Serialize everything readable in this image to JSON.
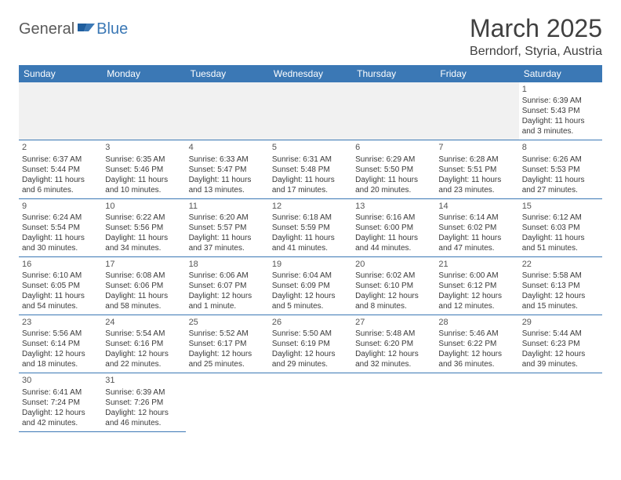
{
  "logo": {
    "part1": "General",
    "part2": "Blue"
  },
  "title": "March 2025",
  "location": "Berndorf, Styria, Austria",
  "colors": {
    "header_bg": "#3b78b5",
    "header_fg": "#ffffff",
    "rule": "#3b78b5",
    "empty_bg": "#f1f1f1",
    "text": "#3a3a3a",
    "title_color": "#404040"
  },
  "daysOfWeek": [
    "Sunday",
    "Monday",
    "Tuesday",
    "Wednesday",
    "Thursday",
    "Friday",
    "Saturday"
  ],
  "weeks": [
    [
      null,
      null,
      null,
      null,
      null,
      null,
      {
        "n": "1",
        "sr": "Sunrise: 6:39 AM",
        "ss": "Sunset: 5:43 PM",
        "dl1": "Daylight: 11 hours",
        "dl2": "and 3 minutes."
      }
    ],
    [
      {
        "n": "2",
        "sr": "Sunrise: 6:37 AM",
        "ss": "Sunset: 5:44 PM",
        "dl1": "Daylight: 11 hours",
        "dl2": "and 6 minutes."
      },
      {
        "n": "3",
        "sr": "Sunrise: 6:35 AM",
        "ss": "Sunset: 5:46 PM",
        "dl1": "Daylight: 11 hours",
        "dl2": "and 10 minutes."
      },
      {
        "n": "4",
        "sr": "Sunrise: 6:33 AM",
        "ss": "Sunset: 5:47 PM",
        "dl1": "Daylight: 11 hours",
        "dl2": "and 13 minutes."
      },
      {
        "n": "5",
        "sr": "Sunrise: 6:31 AM",
        "ss": "Sunset: 5:48 PM",
        "dl1": "Daylight: 11 hours",
        "dl2": "and 17 minutes."
      },
      {
        "n": "6",
        "sr": "Sunrise: 6:29 AM",
        "ss": "Sunset: 5:50 PM",
        "dl1": "Daylight: 11 hours",
        "dl2": "and 20 minutes."
      },
      {
        "n": "7",
        "sr": "Sunrise: 6:28 AM",
        "ss": "Sunset: 5:51 PM",
        "dl1": "Daylight: 11 hours",
        "dl2": "and 23 minutes."
      },
      {
        "n": "8",
        "sr": "Sunrise: 6:26 AM",
        "ss": "Sunset: 5:53 PM",
        "dl1": "Daylight: 11 hours",
        "dl2": "and 27 minutes."
      }
    ],
    [
      {
        "n": "9",
        "sr": "Sunrise: 6:24 AM",
        "ss": "Sunset: 5:54 PM",
        "dl1": "Daylight: 11 hours",
        "dl2": "and 30 minutes."
      },
      {
        "n": "10",
        "sr": "Sunrise: 6:22 AM",
        "ss": "Sunset: 5:56 PM",
        "dl1": "Daylight: 11 hours",
        "dl2": "and 34 minutes."
      },
      {
        "n": "11",
        "sr": "Sunrise: 6:20 AM",
        "ss": "Sunset: 5:57 PM",
        "dl1": "Daylight: 11 hours",
        "dl2": "and 37 minutes."
      },
      {
        "n": "12",
        "sr": "Sunrise: 6:18 AM",
        "ss": "Sunset: 5:59 PM",
        "dl1": "Daylight: 11 hours",
        "dl2": "and 41 minutes."
      },
      {
        "n": "13",
        "sr": "Sunrise: 6:16 AM",
        "ss": "Sunset: 6:00 PM",
        "dl1": "Daylight: 11 hours",
        "dl2": "and 44 minutes."
      },
      {
        "n": "14",
        "sr": "Sunrise: 6:14 AM",
        "ss": "Sunset: 6:02 PM",
        "dl1": "Daylight: 11 hours",
        "dl2": "and 47 minutes."
      },
      {
        "n": "15",
        "sr": "Sunrise: 6:12 AM",
        "ss": "Sunset: 6:03 PM",
        "dl1": "Daylight: 11 hours",
        "dl2": "and 51 minutes."
      }
    ],
    [
      {
        "n": "16",
        "sr": "Sunrise: 6:10 AM",
        "ss": "Sunset: 6:05 PM",
        "dl1": "Daylight: 11 hours",
        "dl2": "and 54 minutes."
      },
      {
        "n": "17",
        "sr": "Sunrise: 6:08 AM",
        "ss": "Sunset: 6:06 PM",
        "dl1": "Daylight: 11 hours",
        "dl2": "and 58 minutes."
      },
      {
        "n": "18",
        "sr": "Sunrise: 6:06 AM",
        "ss": "Sunset: 6:07 PM",
        "dl1": "Daylight: 12 hours",
        "dl2": "and 1 minute."
      },
      {
        "n": "19",
        "sr": "Sunrise: 6:04 AM",
        "ss": "Sunset: 6:09 PM",
        "dl1": "Daylight: 12 hours",
        "dl2": "and 5 minutes."
      },
      {
        "n": "20",
        "sr": "Sunrise: 6:02 AM",
        "ss": "Sunset: 6:10 PM",
        "dl1": "Daylight: 12 hours",
        "dl2": "and 8 minutes."
      },
      {
        "n": "21",
        "sr": "Sunrise: 6:00 AM",
        "ss": "Sunset: 6:12 PM",
        "dl1": "Daylight: 12 hours",
        "dl2": "and 12 minutes."
      },
      {
        "n": "22",
        "sr": "Sunrise: 5:58 AM",
        "ss": "Sunset: 6:13 PM",
        "dl1": "Daylight: 12 hours",
        "dl2": "and 15 minutes."
      }
    ],
    [
      {
        "n": "23",
        "sr": "Sunrise: 5:56 AM",
        "ss": "Sunset: 6:14 PM",
        "dl1": "Daylight: 12 hours",
        "dl2": "and 18 minutes."
      },
      {
        "n": "24",
        "sr": "Sunrise: 5:54 AM",
        "ss": "Sunset: 6:16 PM",
        "dl1": "Daylight: 12 hours",
        "dl2": "and 22 minutes."
      },
      {
        "n": "25",
        "sr": "Sunrise: 5:52 AM",
        "ss": "Sunset: 6:17 PM",
        "dl1": "Daylight: 12 hours",
        "dl2": "and 25 minutes."
      },
      {
        "n": "26",
        "sr": "Sunrise: 5:50 AM",
        "ss": "Sunset: 6:19 PM",
        "dl1": "Daylight: 12 hours",
        "dl2": "and 29 minutes."
      },
      {
        "n": "27",
        "sr": "Sunrise: 5:48 AM",
        "ss": "Sunset: 6:20 PM",
        "dl1": "Daylight: 12 hours",
        "dl2": "and 32 minutes."
      },
      {
        "n": "28",
        "sr": "Sunrise: 5:46 AM",
        "ss": "Sunset: 6:22 PM",
        "dl1": "Daylight: 12 hours",
        "dl2": "and 36 minutes."
      },
      {
        "n": "29",
        "sr": "Sunrise: 5:44 AM",
        "ss": "Sunset: 6:23 PM",
        "dl1": "Daylight: 12 hours",
        "dl2": "and 39 minutes."
      }
    ],
    [
      {
        "n": "30",
        "sr": "Sunrise: 6:41 AM",
        "ss": "Sunset: 7:24 PM",
        "dl1": "Daylight: 12 hours",
        "dl2": "and 42 minutes."
      },
      {
        "n": "31",
        "sr": "Sunrise: 6:39 AM",
        "ss": "Sunset: 7:26 PM",
        "dl1": "Daylight: 12 hours",
        "dl2": "and 46 minutes."
      },
      null,
      null,
      null,
      null,
      null
    ]
  ]
}
